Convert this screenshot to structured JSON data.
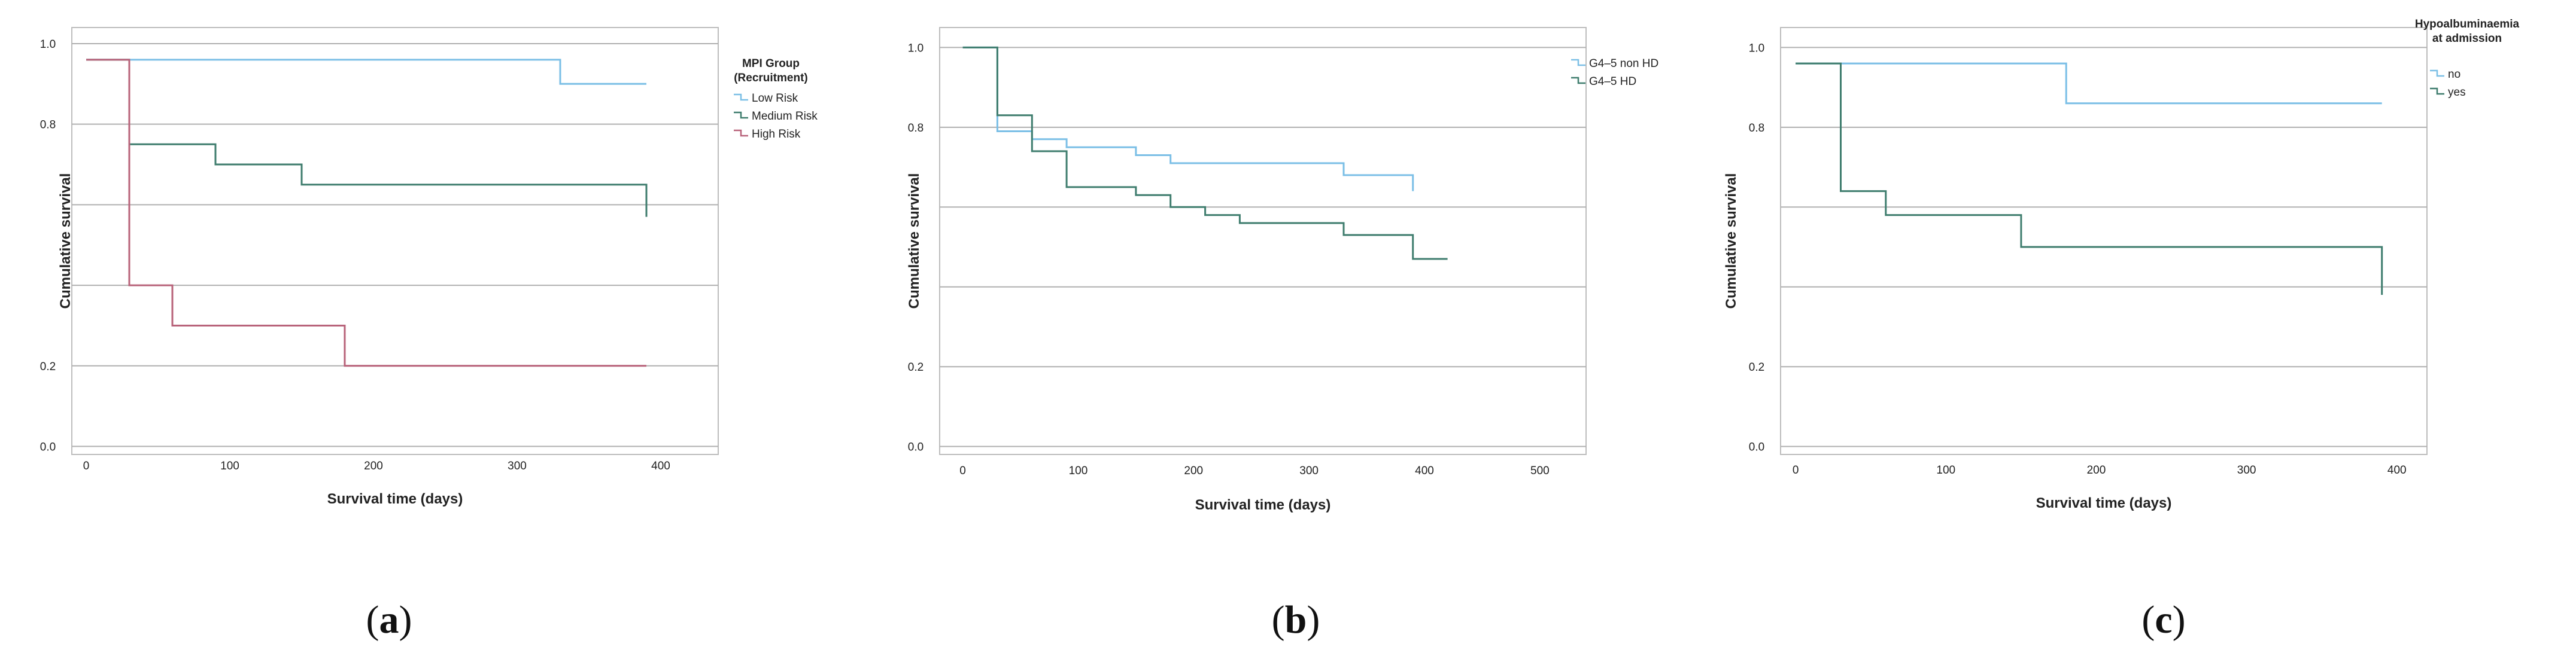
{
  "chart_data": [
    {
      "type": "line",
      "panel": "a",
      "xlabel": "Survival time (days)",
      "ylabel": "Cumulative survival",
      "xticks": [
        0,
        100,
        200,
        300,
        400
      ],
      "yticks": [
        {
          "v": 0.0,
          "label": "0.0"
        },
        {
          "v": 0.2,
          "label": "0.2"
        },
        {
          "v": 0.4,
          "label": ""
        },
        {
          "v": 0.6,
          "label": ""
        },
        {
          "v": 0.8,
          "label": "0.8"
        },
        {
          "v": 1.0,
          "label": "1.0"
        }
      ],
      "xlim": [
        -10,
        440
      ],
      "ylim": [
        -0.02,
        1.04
      ],
      "grid": true,
      "legend_title_lines": [
        "MPI Group",
        "(Recruitment)"
      ],
      "series": [
        {
          "name": "Low Risk",
          "color": "#7bbfe6",
          "points": [
            [
              0,
              0.96
            ],
            [
              330,
              0.96
            ],
            [
              330,
              0.9
            ],
            [
              390,
              0.9
            ]
          ]
        },
        {
          "name": "Medium Risk",
          "color": "#3f7d6e",
          "points": [
            [
              0,
              0.96
            ],
            [
              30,
              0.96
            ],
            [
              30,
              0.75
            ],
            [
              90,
              0.75
            ],
            [
              90,
              0.7
            ],
            [
              150,
              0.7
            ],
            [
              150,
              0.65
            ],
            [
              390,
              0.65
            ],
            [
              390,
              0.57
            ]
          ]
        },
        {
          "name": "High Risk",
          "color": "#b8637a",
          "points": [
            [
              0,
              0.96
            ],
            [
              30,
              0.96
            ],
            [
              30,
              0.4
            ],
            [
              60,
              0.4
            ],
            [
              60,
              0.3
            ],
            [
              180,
              0.3
            ],
            [
              180,
              0.2
            ],
            [
              390,
              0.2
            ]
          ]
        }
      ]
    },
    {
      "type": "line",
      "panel": "b",
      "xlabel": "Survival time (days)",
      "ylabel": "Cumulative survival",
      "xticks": [
        0,
        100,
        200,
        300,
        400,
        500
      ],
      "yticks": [
        {
          "v": 0.0,
          "label": "0.0"
        },
        {
          "v": 0.2,
          "label": "0.2"
        },
        {
          "v": 0.4,
          "label": ""
        },
        {
          "v": 0.6,
          "label": ""
        },
        {
          "v": 0.8,
          "label": "0.8"
        },
        {
          "v": 1.0,
          "label": "1.0"
        }
      ],
      "xlim": [
        -20,
        540
      ],
      "ylim": [
        -0.02,
        1.05
      ],
      "grid": true,
      "legend_title_lines": [],
      "series": [
        {
          "name": "G4–5 non HD",
          "color": "#7bbfe6",
          "points": [
            [
              0,
              1.0
            ],
            [
              30,
              1.0
            ],
            [
              30,
              0.79
            ],
            [
              60,
              0.79
            ],
            [
              60,
              0.77
            ],
            [
              90,
              0.77
            ],
            [
              90,
              0.75
            ],
            [
              150,
              0.75
            ],
            [
              150,
              0.73
            ],
            [
              180,
              0.73
            ],
            [
              180,
              0.71
            ],
            [
              330,
              0.71
            ],
            [
              330,
              0.68
            ],
            [
              390,
              0.68
            ],
            [
              390,
              0.64
            ]
          ]
        },
        {
          "name": "G4–5 HD",
          "color": "#3f7d6e",
          "points": [
            [
              0,
              1.0
            ],
            [
              30,
              1.0
            ],
            [
              30,
              0.83
            ],
            [
              60,
              0.83
            ],
            [
              60,
              0.74
            ],
            [
              90,
              0.74
            ],
            [
              90,
              0.65
            ],
            [
              150,
              0.65
            ],
            [
              150,
              0.63
            ],
            [
              180,
              0.63
            ],
            [
              180,
              0.6
            ],
            [
              210,
              0.6
            ],
            [
              210,
              0.58
            ],
            [
              240,
              0.58
            ],
            [
              240,
              0.56
            ],
            [
              330,
              0.56
            ],
            [
              330,
              0.53
            ],
            [
              390,
              0.53
            ],
            [
              390,
              0.47
            ],
            [
              420,
              0.47
            ]
          ]
        }
      ]
    },
    {
      "type": "line",
      "panel": "c",
      "xlabel": "Survival time (days)",
      "ylabel": "Cumulative survival",
      "xticks": [
        0,
        100,
        200,
        300,
        400
      ],
      "yticks": [
        {
          "v": 0.0,
          "label": "0.0"
        },
        {
          "v": 0.2,
          "label": "0.2"
        },
        {
          "v": 0.4,
          "label": ""
        },
        {
          "v": 0.6,
          "label": ""
        },
        {
          "v": 0.8,
          "label": "0.8"
        },
        {
          "v": 1.0,
          "label": "1.0"
        }
      ],
      "xlim": [
        -10,
        420
      ],
      "ylim": [
        -0.02,
        1.05
      ],
      "grid": true,
      "legend_title_lines": [
        "Hypoalbuminaemia",
        "at admission"
      ],
      "series": [
        {
          "name": "no",
          "color": "#7bbfe6",
          "points": [
            [
              0,
              0.96
            ],
            [
              180,
              0.96
            ],
            [
              180,
              0.86
            ],
            [
              390,
              0.86
            ]
          ]
        },
        {
          "name": "yes",
          "color": "#3f7d6e",
          "points": [
            [
              0,
              0.96
            ],
            [
              30,
              0.96
            ],
            [
              30,
              0.64
            ],
            [
              60,
              0.64
            ],
            [
              60,
              0.58
            ],
            [
              150,
              0.58
            ],
            [
              150,
              0.5
            ],
            [
              390,
              0.5
            ],
            [
              390,
              0.38
            ]
          ]
        }
      ]
    }
  ],
  "captions": [
    {
      "open": "(",
      "letter": "a",
      "close": ")"
    },
    {
      "open": "(",
      "letter": "b",
      "close": ")"
    },
    {
      "open": "(",
      "letter": "c",
      "close": ")"
    }
  ]
}
